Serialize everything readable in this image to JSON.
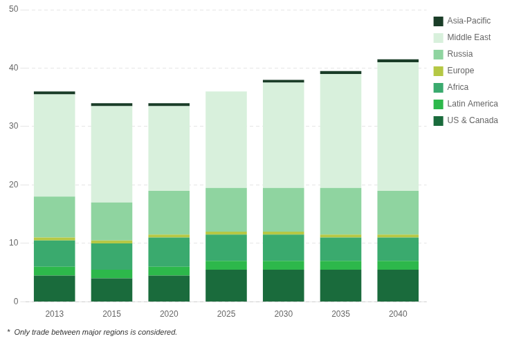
{
  "chart_data": {
    "type": "bar",
    "stacked": true,
    "categories": [
      "2013",
      "2015",
      "2020",
      "2025",
      "2030",
      "2035",
      "2040"
    ],
    "series": [
      {
        "name": "US & Canada",
        "color": "#1a6b3c",
        "values": [
          4.5,
          4.0,
          4.5,
          5.5,
          5.5,
          5.5,
          5.5
        ]
      },
      {
        "name": "Latin America",
        "color": "#2db84b",
        "values": [
          1.5,
          1.5,
          1.5,
          1.5,
          1.5,
          1.5,
          1.5
        ]
      },
      {
        "name": "Africa",
        "color": "#3aaa6e",
        "values": [
          4.5,
          4.5,
          5.0,
          4.5,
          4.5,
          4.0,
          4.0
        ]
      },
      {
        "name": "Europe",
        "color": "#b5c845",
        "values": [
          0.5,
          0.5,
          0.5,
          0.5,
          0.5,
          0.5,
          0.5
        ]
      },
      {
        "name": "Russia",
        "color": "#8fd4a0",
        "values": [
          7.0,
          6.5,
          7.5,
          7.5,
          7.5,
          8.0,
          7.5
        ]
      },
      {
        "name": "Middle East",
        "color": "#d8f0dc",
        "values": [
          17.5,
          16.5,
          14.5,
          16.5,
          18.0,
          19.5,
          22.0
        ]
      },
      {
        "name": "Asia-Pacific",
        "color": "#1a3d28",
        "values": [
          0.5,
          0.5,
          0.5,
          0.0,
          0.5,
          0.5,
          0.5
        ]
      }
    ],
    "ylim": [
      0,
      50
    ],
    "yticks": [
      0,
      10,
      20,
      30,
      40,
      50
    ],
    "grid": true,
    "legend": "right",
    "footnote": "*  Only trade between major regions is considered."
  }
}
